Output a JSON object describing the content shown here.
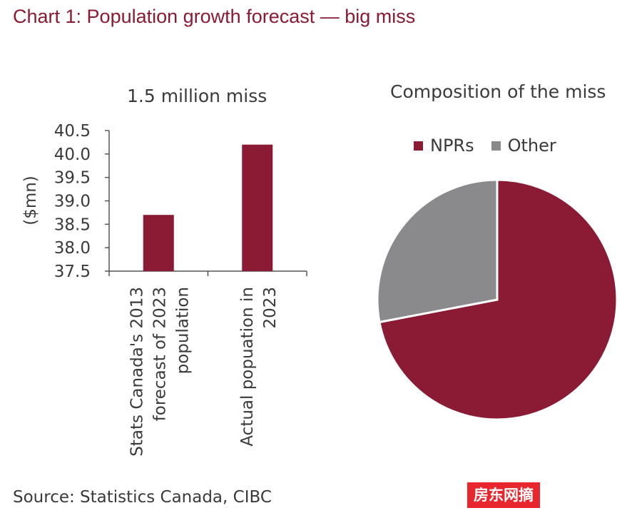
{
  "title": "Chart 1: Population growth forecast — big miss",
  "source": "Source: Statistics Canada, CIBC",
  "watermark": "房东网摘",
  "colors": {
    "accent": "#8b1a34",
    "other": "#8a8a8c",
    "text": "#3a3a3a"
  },
  "chart_data": [
    {
      "type": "bar",
      "title": "1.5 million miss",
      "ylabel": "($mn)",
      "xlabel": "",
      "ylim": [
        37.5,
        40.5
      ],
      "yticks": [
        "37.5",
        "38.0",
        "38.5",
        "39.0",
        "39.5",
        "40.0",
        "40.5"
      ],
      "categories": [
        [
          "Stats Canada's 2013",
          "forecast of 2023",
          "population"
        ],
        [
          "Actual popuation in",
          "2023"
        ]
      ],
      "values": [
        38.7,
        40.2
      ],
      "grid": false
    },
    {
      "type": "pie",
      "title": "Composition of the miss",
      "legend": "top",
      "labels": [
        "NPRs",
        "Other"
      ],
      "values": [
        72,
        28
      ]
    }
  ]
}
